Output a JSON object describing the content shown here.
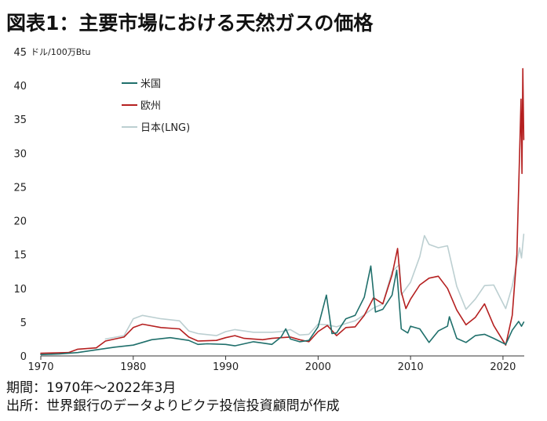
{
  "title": "図表1：主要市場における天然ガスの価格",
  "footer": {
    "period": "期間：1970年～2022年3月",
    "source": "出所：世界銀行のデータよりピクテ投信投資顧問が作成"
  },
  "chart_data": {
    "type": "line",
    "unit_label": "ドル/100万Btu",
    "xlim": [
      1970,
      2022.3
    ],
    "ylim": [
      0,
      45
    ],
    "x_ticks": [
      1970,
      1980,
      1990,
      2000,
      2010,
      2020
    ],
    "y_ticks": [
      0,
      5,
      10,
      15,
      20,
      25,
      30,
      35,
      40,
      45
    ],
    "grid": false,
    "legend_position": "top-left",
    "series": [
      {
        "name": "米国",
        "color": "#1f6f6b",
        "points": [
          [
            1970,
            0.2
          ],
          [
            1972,
            0.3
          ],
          [
            1974,
            0.5
          ],
          [
            1976,
            0.9
          ],
          [
            1978,
            1.3
          ],
          [
            1980,
            1.6
          ],
          [
            1982,
            2.4
          ],
          [
            1984,
            2.7
          ],
          [
            1986,
            2.3
          ],
          [
            1987,
            1.7
          ],
          [
            1988,
            1.8
          ],
          [
            1990,
            1.7
          ],
          [
            1991,
            1.5
          ],
          [
            1992,
            1.8
          ],
          [
            1993,
            2.1
          ],
          [
            1994,
            1.9
          ],
          [
            1995,
            1.7
          ],
          [
            1996,
            2.8
          ],
          [
            1996.5,
            4.0
          ],
          [
            1997,
            2.5
          ],
          [
            1998,
            2.1
          ],
          [
            1999,
            2.3
          ],
          [
            2000,
            4.3
          ],
          [
            2000.9,
            9.0
          ],
          [
            2001.5,
            3.3
          ],
          [
            2002,
            3.4
          ],
          [
            2003,
            5.5
          ],
          [
            2004,
            6.0
          ],
          [
            2005,
            8.7
          ],
          [
            2005.7,
            13.3
          ],
          [
            2006.2,
            6.5
          ],
          [
            2007,
            6.9
          ],
          [
            2008,
            9.0
          ],
          [
            2008.5,
            12.7
          ],
          [
            2009,
            4.0
          ],
          [
            2009.7,
            3.4
          ],
          [
            2010,
            4.4
          ],
          [
            2011,
            4.0
          ],
          [
            2012,
            2.0
          ],
          [
            2013,
            3.7
          ],
          [
            2014,
            4.4
          ],
          [
            2014.2,
            5.8
          ],
          [
            2015,
            2.6
          ],
          [
            2016,
            2.0
          ],
          [
            2017,
            3.0
          ],
          [
            2018,
            3.2
          ],
          [
            2019,
            2.6
          ],
          [
            2020.3,
            1.7
          ],
          [
            2021,
            3.8
          ],
          [
            2021.7,
            5.1
          ],
          [
            2022,
            4.4
          ],
          [
            2022.25,
            5.0
          ]
        ]
      },
      {
        "name": "欧州",
        "color": "#b52020",
        "points": [
          [
            1970,
            0.4
          ],
          [
            1973,
            0.5
          ],
          [
            1974,
            1.0
          ],
          [
            1976,
            1.2
          ],
          [
            1977,
            2.2
          ],
          [
            1979,
            2.8
          ],
          [
            1980,
            4.2
          ],
          [
            1981,
            4.7
          ],
          [
            1983,
            4.2
          ],
          [
            1985,
            4.0
          ],
          [
            1986,
            2.8
          ],
          [
            1987,
            2.2
          ],
          [
            1989,
            2.3
          ],
          [
            1990,
            2.7
          ],
          [
            1991,
            3.0
          ],
          [
            1992,
            2.6
          ],
          [
            1994,
            2.4
          ],
          [
            1995,
            2.6
          ],
          [
            1996,
            2.7
          ],
          [
            1997,
            2.8
          ],
          [
            1998,
            2.4
          ],
          [
            1999,
            2.1
          ],
          [
            2000,
            3.6
          ],
          [
            2001,
            4.5
          ],
          [
            2002,
            3.0
          ],
          [
            2003,
            4.2
          ],
          [
            2004,
            4.3
          ],
          [
            2005,
            6.0
          ],
          [
            2006,
            8.6
          ],
          [
            2007,
            7.7
          ],
          [
            2008,
            12.0
          ],
          [
            2008.6,
            15.9
          ],
          [
            2009,
            9.5
          ],
          [
            2009.5,
            7.0
          ],
          [
            2010,
            8.4
          ],
          [
            2011,
            10.5
          ],
          [
            2012,
            11.5
          ],
          [
            2013,
            11.8
          ],
          [
            2014,
            10.0
          ],
          [
            2015,
            6.8
          ],
          [
            2016,
            4.6
          ],
          [
            2017,
            5.7
          ],
          [
            2018,
            7.7
          ],
          [
            2019,
            4.5
          ],
          [
            2020.3,
            1.6
          ],
          [
            2021,
            6.0
          ],
          [
            2021.5,
            15.0
          ],
          [
            2021.8,
            30.0
          ],
          [
            2021.95,
            38.0
          ],
          [
            2022.05,
            27.0
          ],
          [
            2022.15,
            42.5
          ],
          [
            2022.25,
            32.0
          ]
        ]
      },
      {
        "name": "日本(LNG)",
        "color": "#bccfd1",
        "points": [
          [
            1977,
            2.5
          ],
          [
            1979,
            3.0
          ],
          [
            1980,
            5.5
          ],
          [
            1981,
            6.0
          ],
          [
            1983,
            5.5
          ],
          [
            1985,
            5.2
          ],
          [
            1986,
            3.7
          ],
          [
            1987,
            3.3
          ],
          [
            1989,
            3.0
          ],
          [
            1990,
            3.6
          ],
          [
            1991,
            3.9
          ],
          [
            1993,
            3.5
          ],
          [
            1995,
            3.5
          ],
          [
            1996,
            3.6
          ],
          [
            1997,
            3.9
          ],
          [
            1998,
            3.1
          ],
          [
            1999,
            3.2
          ],
          [
            2000,
            4.7
          ],
          [
            2001,
            4.6
          ],
          [
            2002,
            4.3
          ],
          [
            2003,
            4.8
          ],
          [
            2004,
            5.2
          ],
          [
            2005,
            6.1
          ],
          [
            2006,
            7.1
          ],
          [
            2007,
            7.7
          ],
          [
            2008,
            12.5
          ],
          [
            2008.8,
            13.5
          ],
          [
            2009,
            9.0
          ],
          [
            2010,
            10.9
          ],
          [
            2011,
            14.7
          ],
          [
            2011.5,
            17.8
          ],
          [
            2012,
            16.5
          ],
          [
            2013,
            16.0
          ],
          [
            2014,
            16.3
          ],
          [
            2015,
            10.3
          ],
          [
            2016,
            6.9
          ],
          [
            2017,
            8.4
          ],
          [
            2018,
            10.4
          ],
          [
            2019,
            10.5
          ],
          [
            2020.3,
            7.0
          ],
          [
            2021,
            10.3
          ],
          [
            2021.8,
            16.0
          ],
          [
            2022,
            14.5
          ],
          [
            2022.25,
            18.0
          ]
        ]
      }
    ]
  }
}
